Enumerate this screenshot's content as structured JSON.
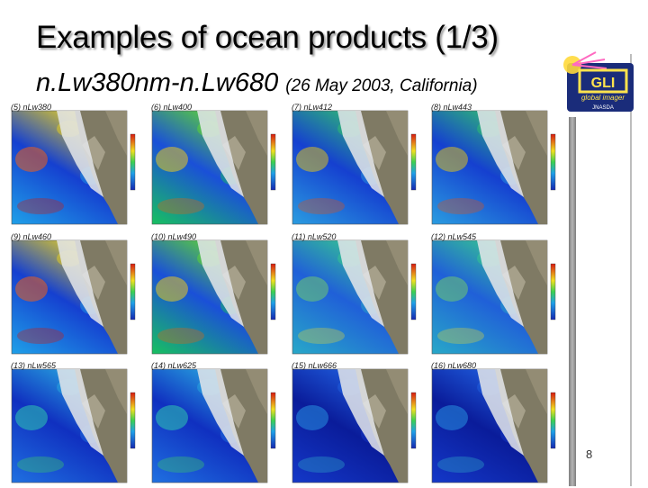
{
  "slide": {
    "title": "Examples of ocean products (1/3)",
    "subtitle_main": "n.Lw380nm-n.Lw680",
    "subtitle_note": "(26 May 2003, California)",
    "page_number": "8",
    "logo_text": "global imager",
    "logo_sub": "JNASDA"
  },
  "panels": [
    {
      "label": "(5) nLw380",
      "palette": "high"
    },
    {
      "label": "(6) nLw400",
      "palette": "green"
    },
    {
      "label": "(7) nLw412",
      "palette": "mix"
    },
    {
      "label": "(8) nLw443",
      "palette": "mix"
    },
    {
      "label": "(9) nLw460",
      "palette": "high"
    },
    {
      "label": "(10) nLw490",
      "palette": "green"
    },
    {
      "label": "(11) nLw520",
      "palette": "teal"
    },
    {
      "label": "(12) nLw545",
      "palette": "teal"
    },
    {
      "label": "(13) nLw565",
      "palette": "blue"
    },
    {
      "label": "(14) nLw625",
      "palette": "blue"
    },
    {
      "label": "(15) nLw666",
      "palette": "deep"
    },
    {
      "label": "(16) nLw680",
      "palette": "deep"
    }
  ]
}
